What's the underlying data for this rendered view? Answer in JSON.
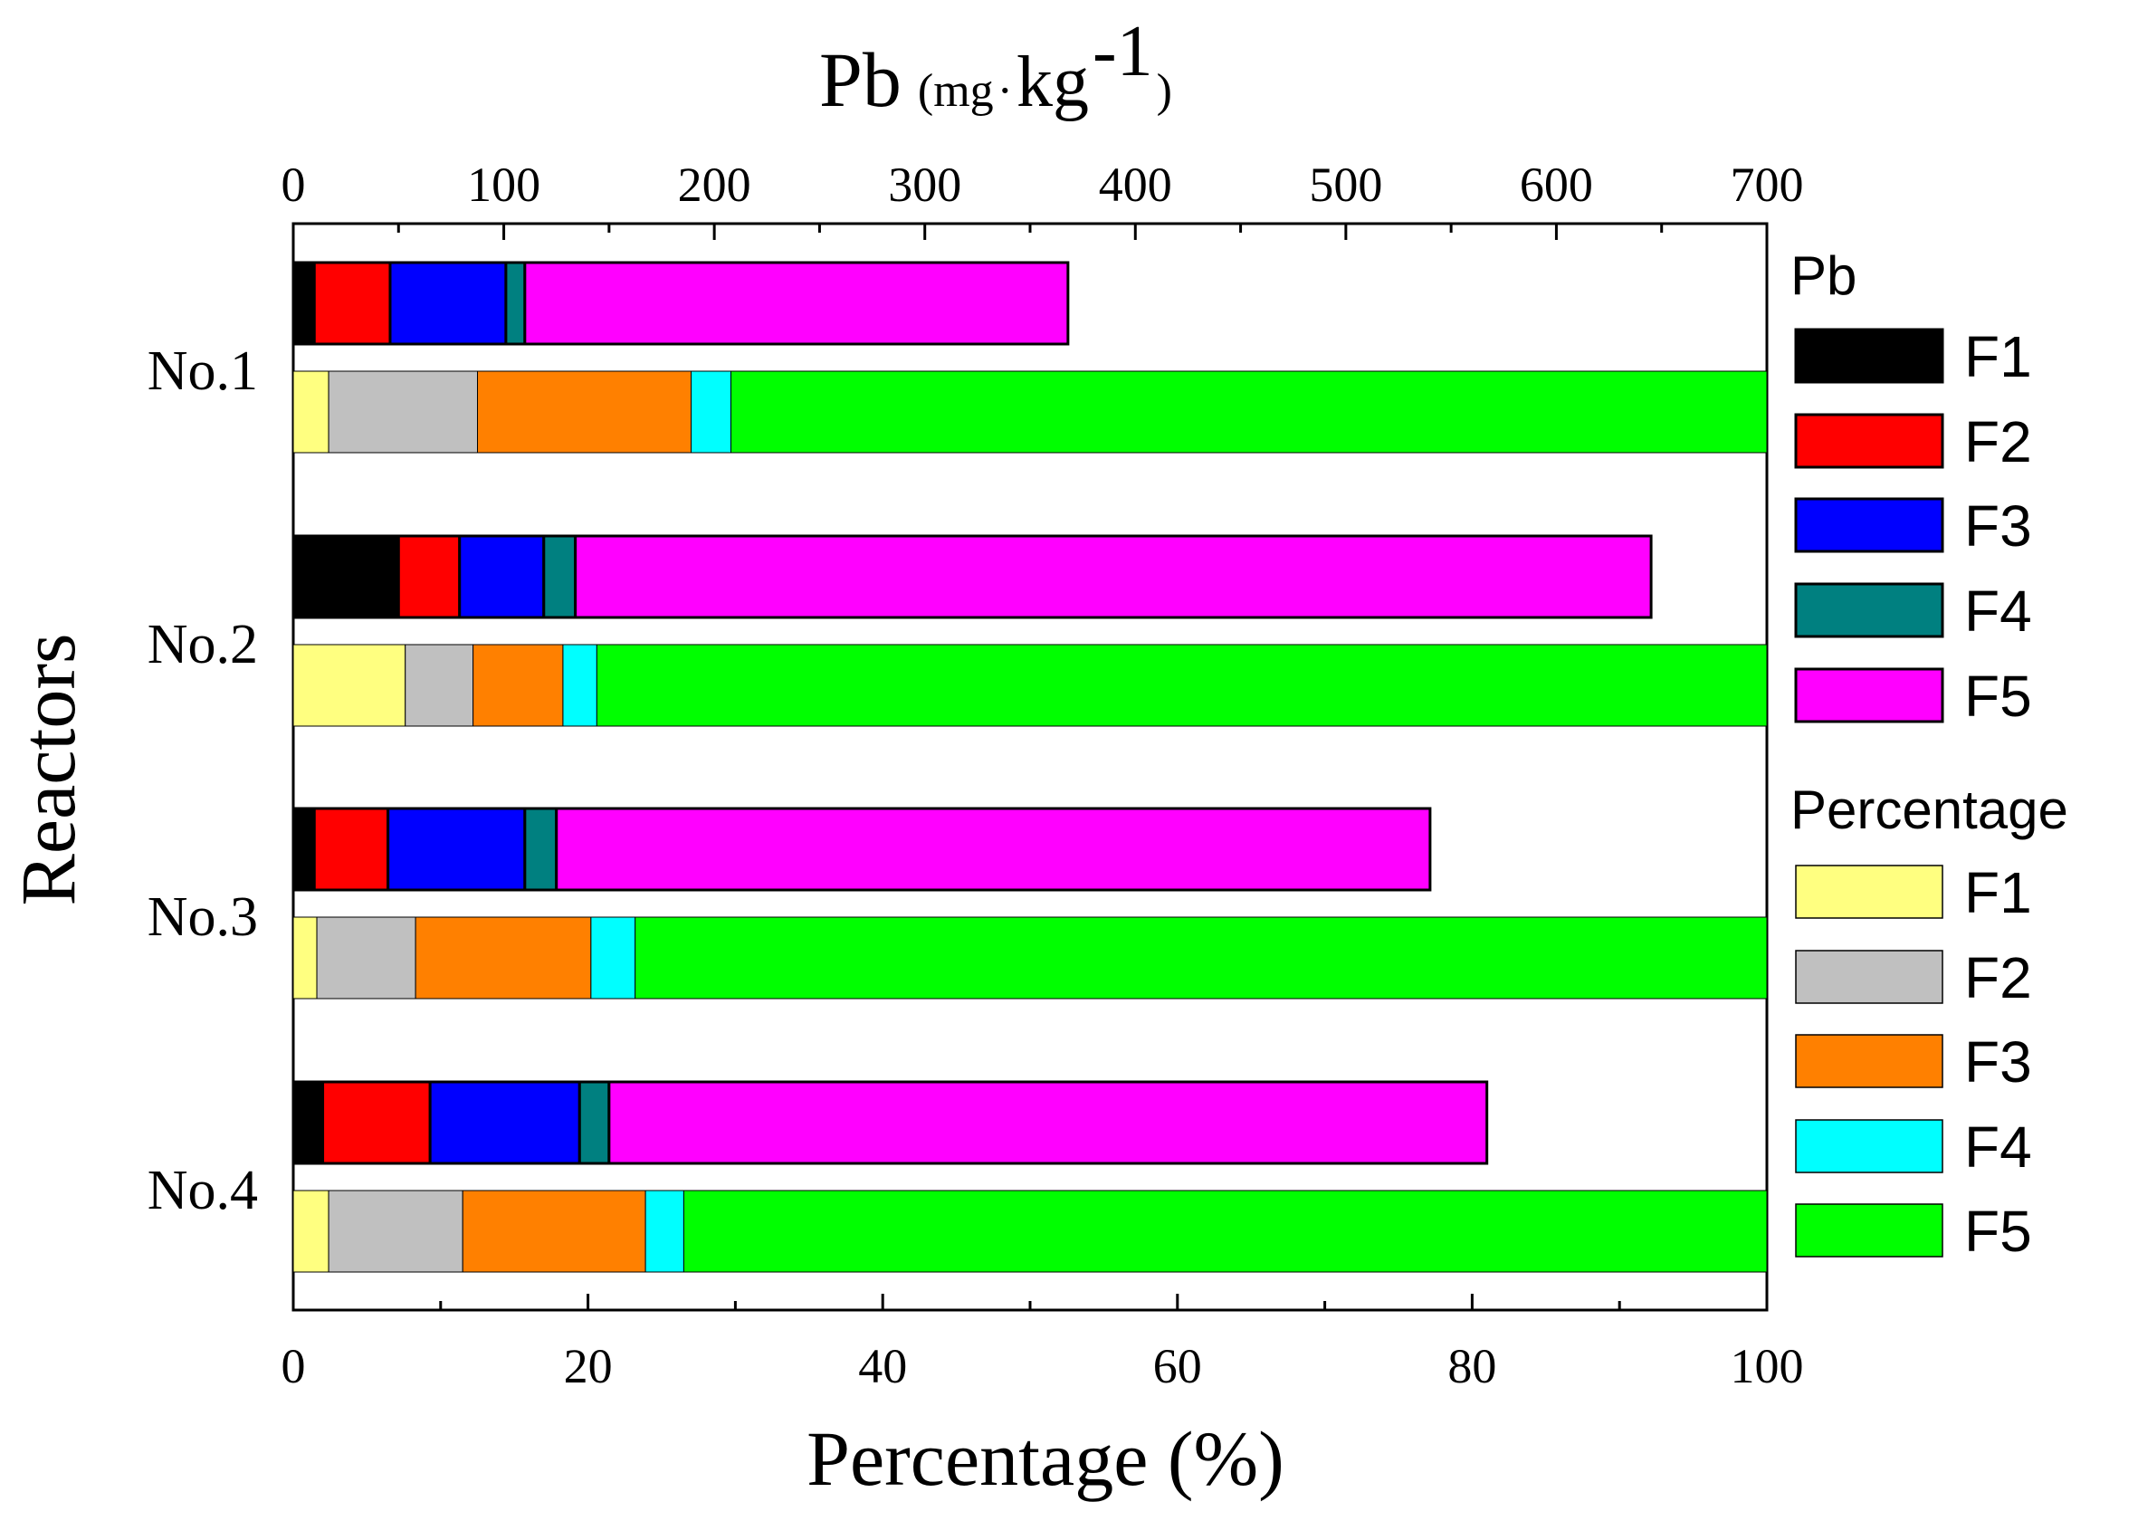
{
  "chart_data": {
    "type": "bar",
    "orientation": "horizontal",
    "stacked": true,
    "categories": [
      "No.1",
      "No.2",
      "No.3",
      "No.4"
    ],
    "ylabel": "Reactors",
    "top_axis": {
      "label_main": "Pb",
      "label_unit_open": "(mg",
      "label_unit_dot": "·",
      "label_unit_kg": "kg",
      "label_unit_exp": "-1",
      "label_unit_close": ")",
      "range": [
        0,
        700
      ],
      "ticks": [
        "0",
        "100",
        "200",
        "300",
        "400",
        "500",
        "600",
        "700"
      ]
    },
    "bottom_axis": {
      "label": "Percentage (%)",
      "range": [
        0,
        100
      ],
      "ticks": [
        "0",
        "20",
        "40",
        "60",
        "80",
        "100"
      ]
    },
    "pb_series": [
      {
        "name": "F1",
        "color": "#000000",
        "values": [
          10,
          50,
          10,
          14
        ]
      },
      {
        "name": "F2",
        "color": "#ff0000",
        "values": [
          36,
          29,
          35,
          51
        ]
      },
      {
        "name": "F3",
        "color": "#0000ff",
        "values": [
          55,
          40,
          65,
          71
        ]
      },
      {
        "name": "F4",
        "color": "#008080",
        "values": [
          9,
          15,
          15,
          14
        ]
      },
      {
        "name": "F5",
        "color": "#ff00ff",
        "values": [
          258,
          511,
          415,
          417
        ]
      }
    ],
    "percentage_series": [
      {
        "name": "F1",
        "color": "#ffff80",
        "values": [
          2.4,
          7.6,
          1.6,
          2.4
        ]
      },
      {
        "name": "F2",
        "color": "#c0c0c0",
        "values": [
          10.1,
          4.6,
          6.7,
          9.1
        ]
      },
      {
        "name": "F3",
        "color": "#ff8000",
        "values": [
          14.5,
          6.1,
          11.9,
          12.4
        ]
      },
      {
        "name": "F4",
        "color": "#00ffff",
        "values": [
          2.7,
          2.3,
          3.0,
          2.6
        ]
      },
      {
        "name": "F5",
        "color": "#00ff00",
        "values": [
          70.3,
          79.4,
          76.8,
          73.5
        ]
      }
    ],
    "legend": {
      "placement": "right",
      "pb_title": "Pb",
      "percentage_title": "Percentage"
    },
    "grid": false
  }
}
